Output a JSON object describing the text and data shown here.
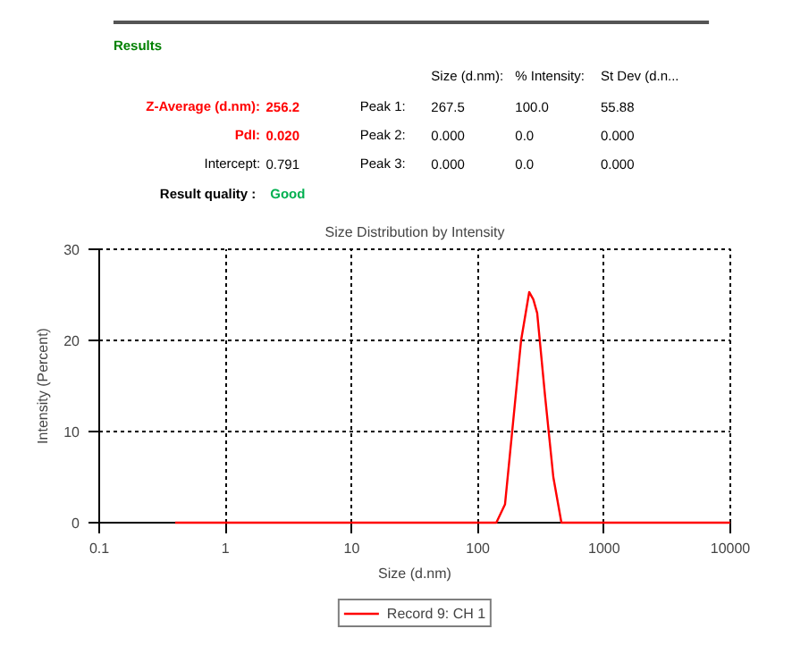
{
  "chart_data": {
    "type": "line",
    "title": "Size Distribution by Intensity",
    "xlabel": "Size (d.nm)",
    "ylabel": "Intensity (Percent)",
    "annotations": [
      "Results",
      "Size (d.nm):",
      "% Intensity:",
      "St Dev (d.n...",
      "Z-Average (d.nm):",
      "256.2",
      "Peak 1:",
      "267.5",
      "100.0",
      "55.88",
      "PdI:",
      "0.020",
      "Peak 2:",
      "0.000",
      "0.0",
      "0.000",
      "Intercept:",
      "0.791",
      "Peak 3:",
      "0.000",
      "0.0",
      "0.000",
      "Result quality :",
      "Good"
    ],
    "x": [
      0.4,
      1,
      10,
      100,
      140,
      164,
      190,
      220,
      255,
      275,
      295,
      340,
      396,
      459,
      1000,
      10000
    ],
    "series": [
      {
        "name": "Record 9: CH 1",
        "color": "#ff0000",
        "values": [
          0,
          0,
          0,
          0,
          0,
          2,
          11,
          20,
          25.3,
          24.5,
          23,
          14,
          5,
          0,
          0,
          0
        ]
      }
    ],
    "log": "x",
    "xlim": [
      0.1,
      10000
    ],
    "xticks": [
      0.1,
      1,
      10,
      100,
      1000,
      10000
    ],
    "ylim": [
      0,
      30
    ],
    "yticks": [
      0,
      10,
      20,
      30
    ],
    "grid": true,
    "legend": "bottom",
    "line_style": "solid",
    "marker": "none"
  }
}
